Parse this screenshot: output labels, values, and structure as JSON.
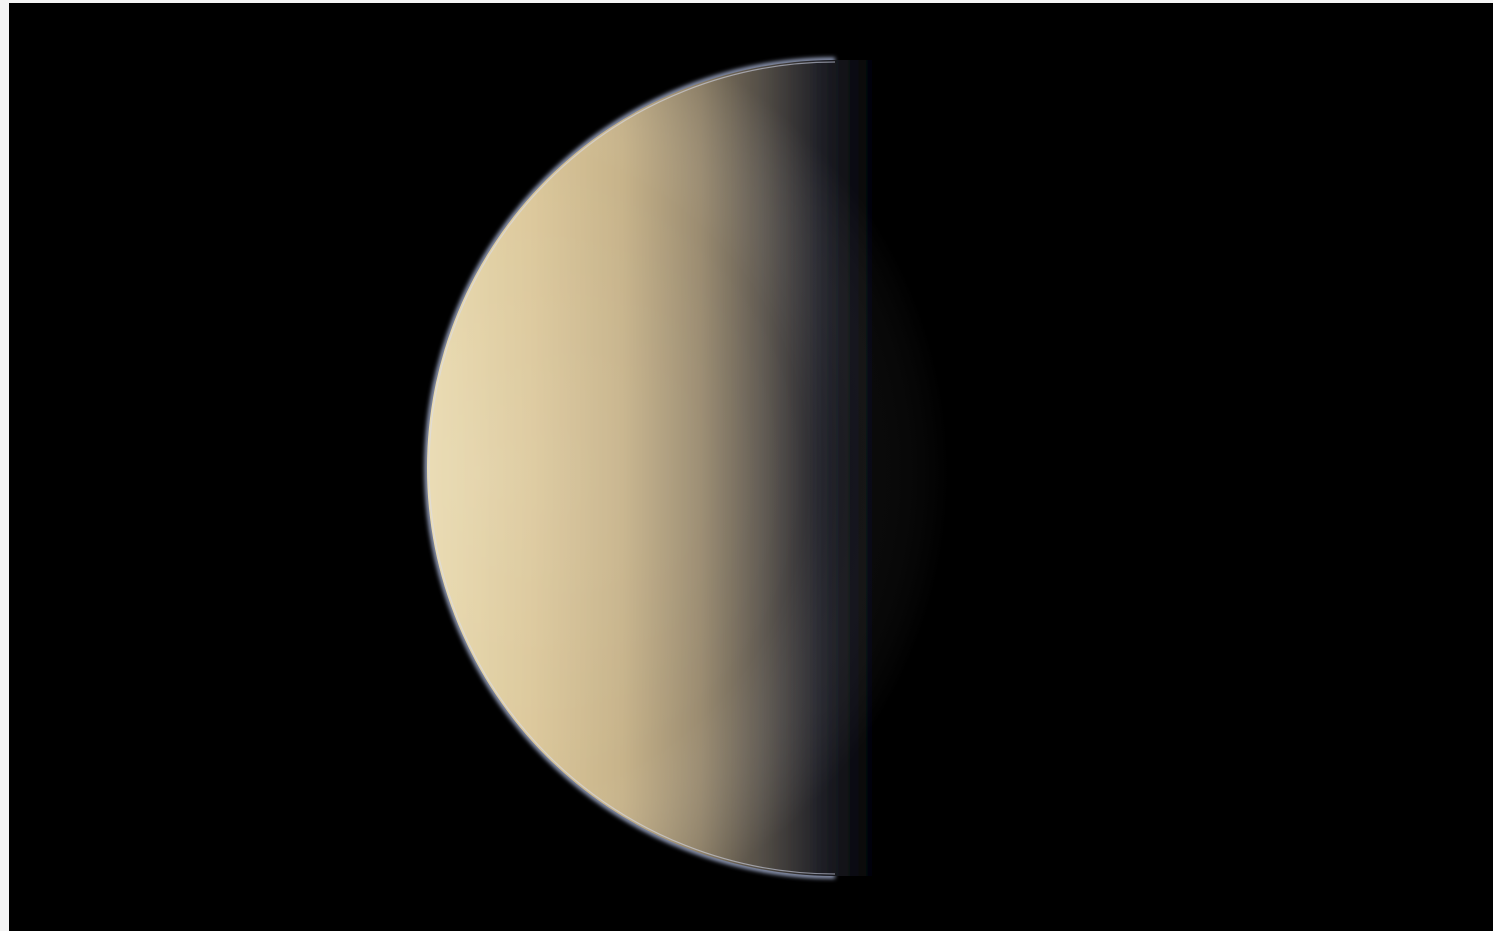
{
  "image": {
    "subject": "planet-half-phase",
    "colors": {
      "background": "#000000",
      "page": "#f4f4f4",
      "limb_glow": "#bcc8ea",
      "surface_light": "#e6d6a8",
      "surface_mid": "#c9b488",
      "surface_shadow": "#7d7260",
      "terminator": "#2a2c36",
      "night": "#06070c"
    },
    "illuminated_fraction": 0.5
  }
}
